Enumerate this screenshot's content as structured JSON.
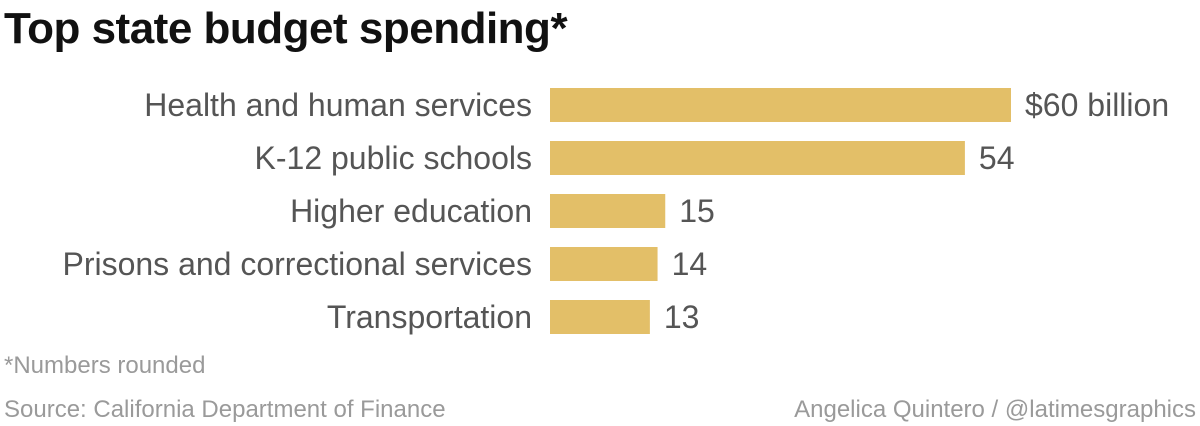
{
  "chart_data": {
    "type": "bar",
    "orientation": "horizontal",
    "title": "Top state budget spending*",
    "categories": [
      "Health and human services",
      "K-12 public schools",
      "Higher education",
      "Prisons and correctional services",
      "Transportation"
    ],
    "values": [
      60,
      54,
      15,
      14,
      13
    ],
    "value_labels": [
      "$60 billion",
      "54",
      "15",
      "14",
      "13"
    ],
    "unit": "billion dollars",
    "xlim": [
      0,
      60
    ],
    "grid": false,
    "legend": "none",
    "bar_color": "#e3bf68"
  },
  "footnote": "*Numbers rounded",
  "source": "Source: California Department of Finance",
  "credit": "Angelica Quintero / @latimesgraphics"
}
